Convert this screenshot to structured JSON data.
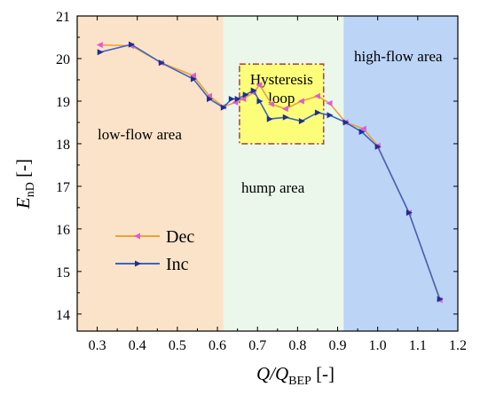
{
  "chart_data": {
    "type": "line",
    "xlim": [
      0.25,
      1.2
    ],
    "ylim": [
      13.6,
      21
    ],
    "x_ticks": [
      "0.3",
      "0.4",
      "0.5",
      "0.6",
      "0.7",
      "0.8",
      "0.9",
      "1.0",
      "1.1",
      "1.2"
    ],
    "y_ticks": [
      "14",
      "15",
      "16",
      "17",
      "18",
      "19",
      "20",
      "21"
    ],
    "xlabel": {
      "main": "Q/Q",
      "sub": "BEP",
      "unit": " [-]"
    },
    "ylabel": {
      "main": "E",
      "sub": "nD",
      "unit": " [-]"
    },
    "grid": false,
    "regions": [
      {
        "name": "low-flow area",
        "x0": 0.25,
        "x1": 0.615,
        "color": "#fbe3c9"
      },
      {
        "name": "hump area",
        "x0": 0.615,
        "x1": 0.915,
        "color": "#eaf7ea"
      },
      {
        "name": "high-flow area",
        "x0": 0.915,
        "x1": 1.2,
        "color": "#bcd4f6"
      }
    ],
    "annotation_box": {
      "label_line1": "Hysteresis",
      "label_line2": "loop",
      "x0": 0.655,
      "x1": 0.865,
      "y0": 18.0,
      "y1": 19.87,
      "color": "#ffff66",
      "border": "#b0484a"
    },
    "series": [
      {
        "name": "Dec",
        "color": "#e8a43a",
        "marker_color": "#e15ad7",
        "marker": "left-triangle",
        "x": [
          0.307,
          0.385,
          0.46,
          0.54,
          0.58,
          0.615,
          0.645,
          0.665,
          0.69,
          0.705,
          0.735,
          0.77,
          0.81,
          0.85,
          0.88,
          0.92,
          0.965,
          1.0,
          1.078,
          1.155
        ],
        "y": [
          20.32,
          20.3,
          19.9,
          19.6,
          19.12,
          18.87,
          18.97,
          19.05,
          19.2,
          19.38,
          18.93,
          18.82,
          19.0,
          19.12,
          18.95,
          18.5,
          18.35,
          17.95,
          16.38,
          14.33
        ]
      },
      {
        "name": "Inc",
        "color": "#3f63c4",
        "marker_color": "#1f2f8f",
        "marker": "right-triangle",
        "x": [
          0.307,
          0.385,
          0.46,
          0.54,
          0.58,
          0.615,
          0.635,
          0.65,
          0.67,
          0.69,
          0.705,
          0.73,
          0.77,
          0.81,
          0.85,
          0.88,
          0.92,
          0.96,
          1.0,
          1.078,
          1.155
        ],
        "y": [
          20.15,
          20.33,
          19.9,
          19.52,
          19.05,
          18.85,
          19.05,
          19.05,
          19.15,
          19.25,
          19.0,
          18.58,
          18.62,
          18.53,
          18.73,
          18.67,
          18.5,
          18.28,
          17.93,
          16.38,
          14.35
        ]
      }
    ],
    "legend": {
      "placement": "lower-left"
    }
  }
}
